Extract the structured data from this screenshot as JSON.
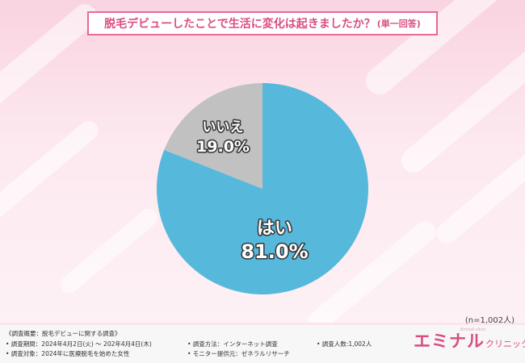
{
  "title": {
    "main": "脱毛デビューしたことで生活に変化は起きましたか？",
    "sub": "(単一回答)"
  },
  "chart_data": {
    "type": "pie",
    "categories": [
      "はい",
      "いいえ"
    ],
    "values": [
      81.0,
      19.0
    ],
    "value_labels": [
      "81.0%",
      "19.0%"
    ],
    "colors": [
      "#56b9dc",
      "#c1c1c1"
    ],
    "start_angle": "12 o'clock",
    "direction": "clockwise",
    "label_color": "#ffffff",
    "label_stroke": "#333333"
  },
  "sample_size": "(n=1,002人)",
  "survey": {
    "overview": "《調査概要：脱毛デビューに関する調査》",
    "period": "• 調査期間：2024年4月2日(火) ～ 202年4月4日(木)",
    "target": "• 調査対象：2024年に医療脱毛を始めた女性",
    "method": "• 調査方法：インターネット調査",
    "provider": "• モニター提供元：ゼネラルリサーチ",
    "count": "• 調査人数:1,002人"
  },
  "brand": {
    "main": "エミナル",
    "sub": "クリニック",
    "tagline": "Eminal clinic"
  }
}
